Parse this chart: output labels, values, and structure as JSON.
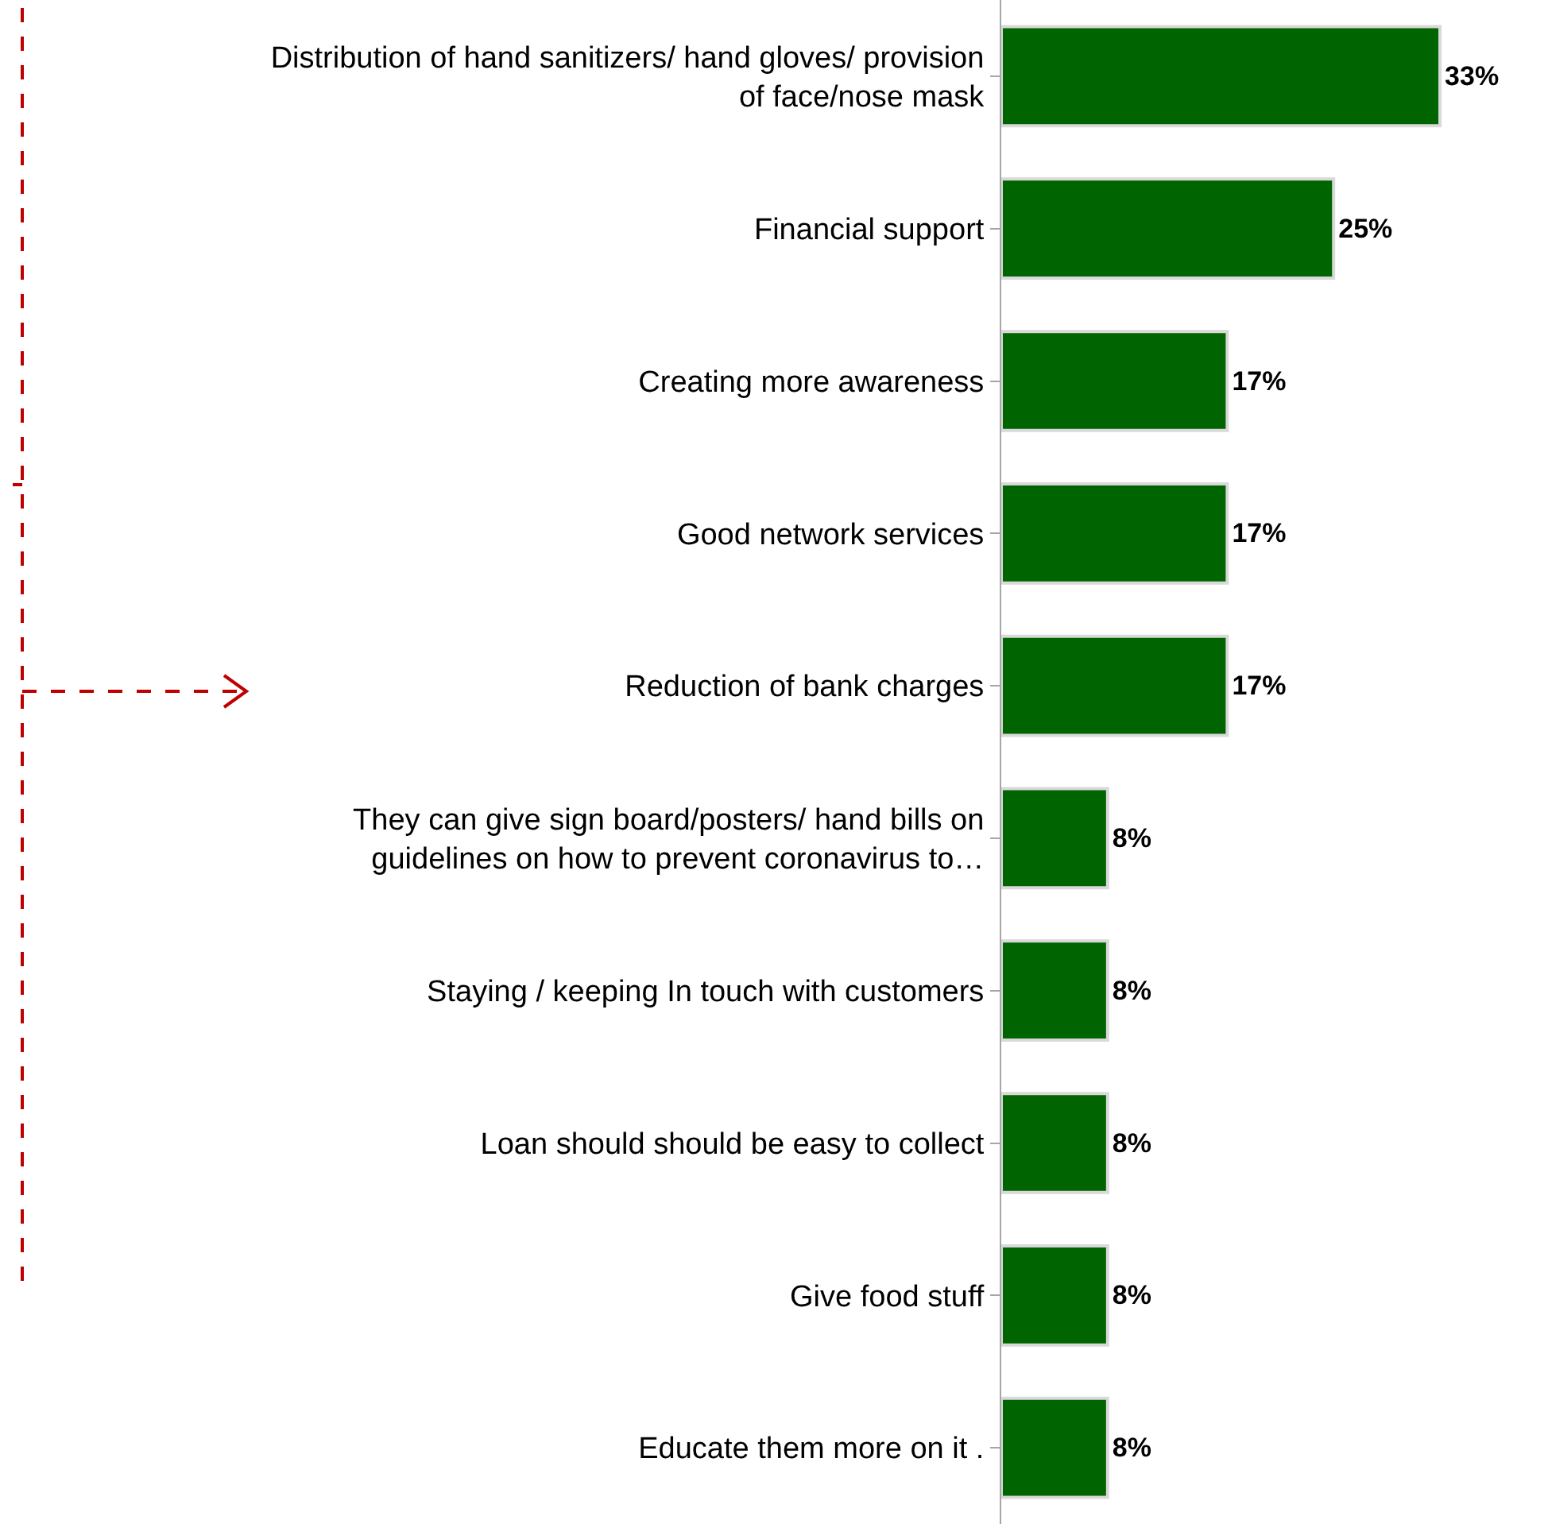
{
  "chart_data": {
    "type": "bar",
    "orientation": "horizontal",
    "categories": [
      "Distribution of hand sanitizers/ hand gloves/ provision of face/nose mask",
      "Financial support",
      "Creating more awareness",
      "Good network services",
      "Reduction of bank charges",
      "They can give sign board/posters/ hand bills on guidelines on how to prevent coronavirus to…",
      "Staying / keeping In touch with customers",
      "Loan should should be easy to collect",
      "Give food stuff",
      "Educate them more on it ."
    ],
    "values": [
      33,
      25,
      17,
      17,
      17,
      8,
      8,
      8,
      8,
      8
    ],
    "value_labels": [
      "33%",
      "25%",
      "17%",
      "17%",
      "17%",
      "8%",
      "8%",
      "8%",
      "8%",
      "8%"
    ],
    "color": "#006400",
    "tick_labels": "y"
  }
}
